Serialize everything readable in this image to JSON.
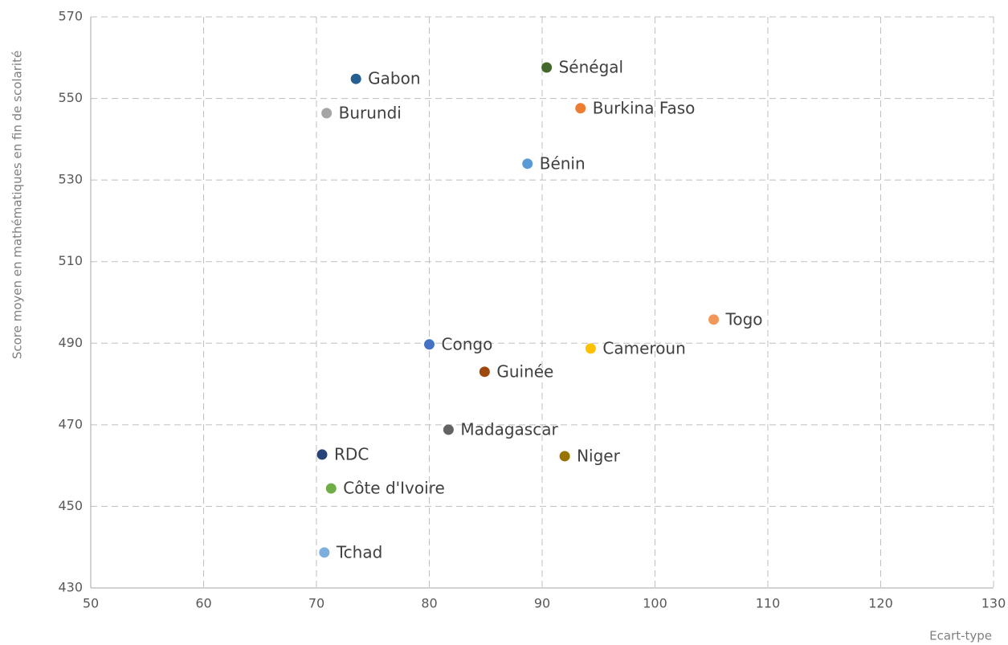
{
  "chart_data": {
    "type": "scatter",
    "x_label": "Ecart-type",
    "y_label": "Score moyen en mathématiques en fin de scolarité",
    "xlim": [
      50,
      130
    ],
    "xticks": [
      50,
      60,
      70,
      80,
      90,
      100,
      110,
      120,
      130
    ],
    "ylim": [
      430,
      570
    ],
    "yticks": [
      430,
      450,
      470,
      490,
      510,
      530,
      550,
      570
    ],
    "grid": true,
    "series": [
      {
        "name": "Gabon",
        "color": "#255e91",
        "x": [
          73.5
        ],
        "values": [
          554.8
        ]
      },
      {
        "name": "Sénégal",
        "color": "#43682b",
        "x": [
          90.4
        ],
        "values": [
          557.6
        ]
      },
      {
        "name": "Burkina Faso",
        "color": "#ed7d31",
        "x": [
          93.4
        ],
        "values": [
          547.6
        ]
      },
      {
        "name": "Burundi",
        "color": "#a5a5a5",
        "x": [
          70.9
        ],
        "values": [
          546.4
        ]
      },
      {
        "name": "Bénin",
        "color": "#5b9bd5",
        "x": [
          88.7
        ],
        "values": [
          534.0
        ]
      },
      {
        "name": "Togo",
        "color": "#f1975a",
        "x": [
          105.2
        ],
        "values": [
          495.8
        ]
      },
      {
        "name": "Congo",
        "color": "#4472c4",
        "x": [
          80.0
        ],
        "values": [
          489.7
        ]
      },
      {
        "name": "Cameroun",
        "color": "#ffc000",
        "x": [
          94.3
        ],
        "values": [
          488.7
        ]
      },
      {
        "name": "Guinée",
        "color": "#9e480e",
        "x": [
          84.9
        ],
        "values": [
          483.0
        ]
      },
      {
        "name": "Madagascar",
        "color": "#636363",
        "x": [
          81.7
        ],
        "values": [
          468.8
        ]
      },
      {
        "name": "RDC",
        "color": "#264478",
        "x": [
          70.5
        ],
        "values": [
          462.7
        ]
      },
      {
        "name": "Niger",
        "color": "#997300",
        "x": [
          92.0
        ],
        "values": [
          462.3
        ]
      },
      {
        "name": "Côte d'Ivoire",
        "color": "#70ad47",
        "x": [
          71.3
        ],
        "values": [
          454.4
        ]
      },
      {
        "name": "Tchad",
        "color": "#7cafdd",
        "x": [
          70.7
        ],
        "values": [
          438.7
        ]
      }
    ]
  }
}
